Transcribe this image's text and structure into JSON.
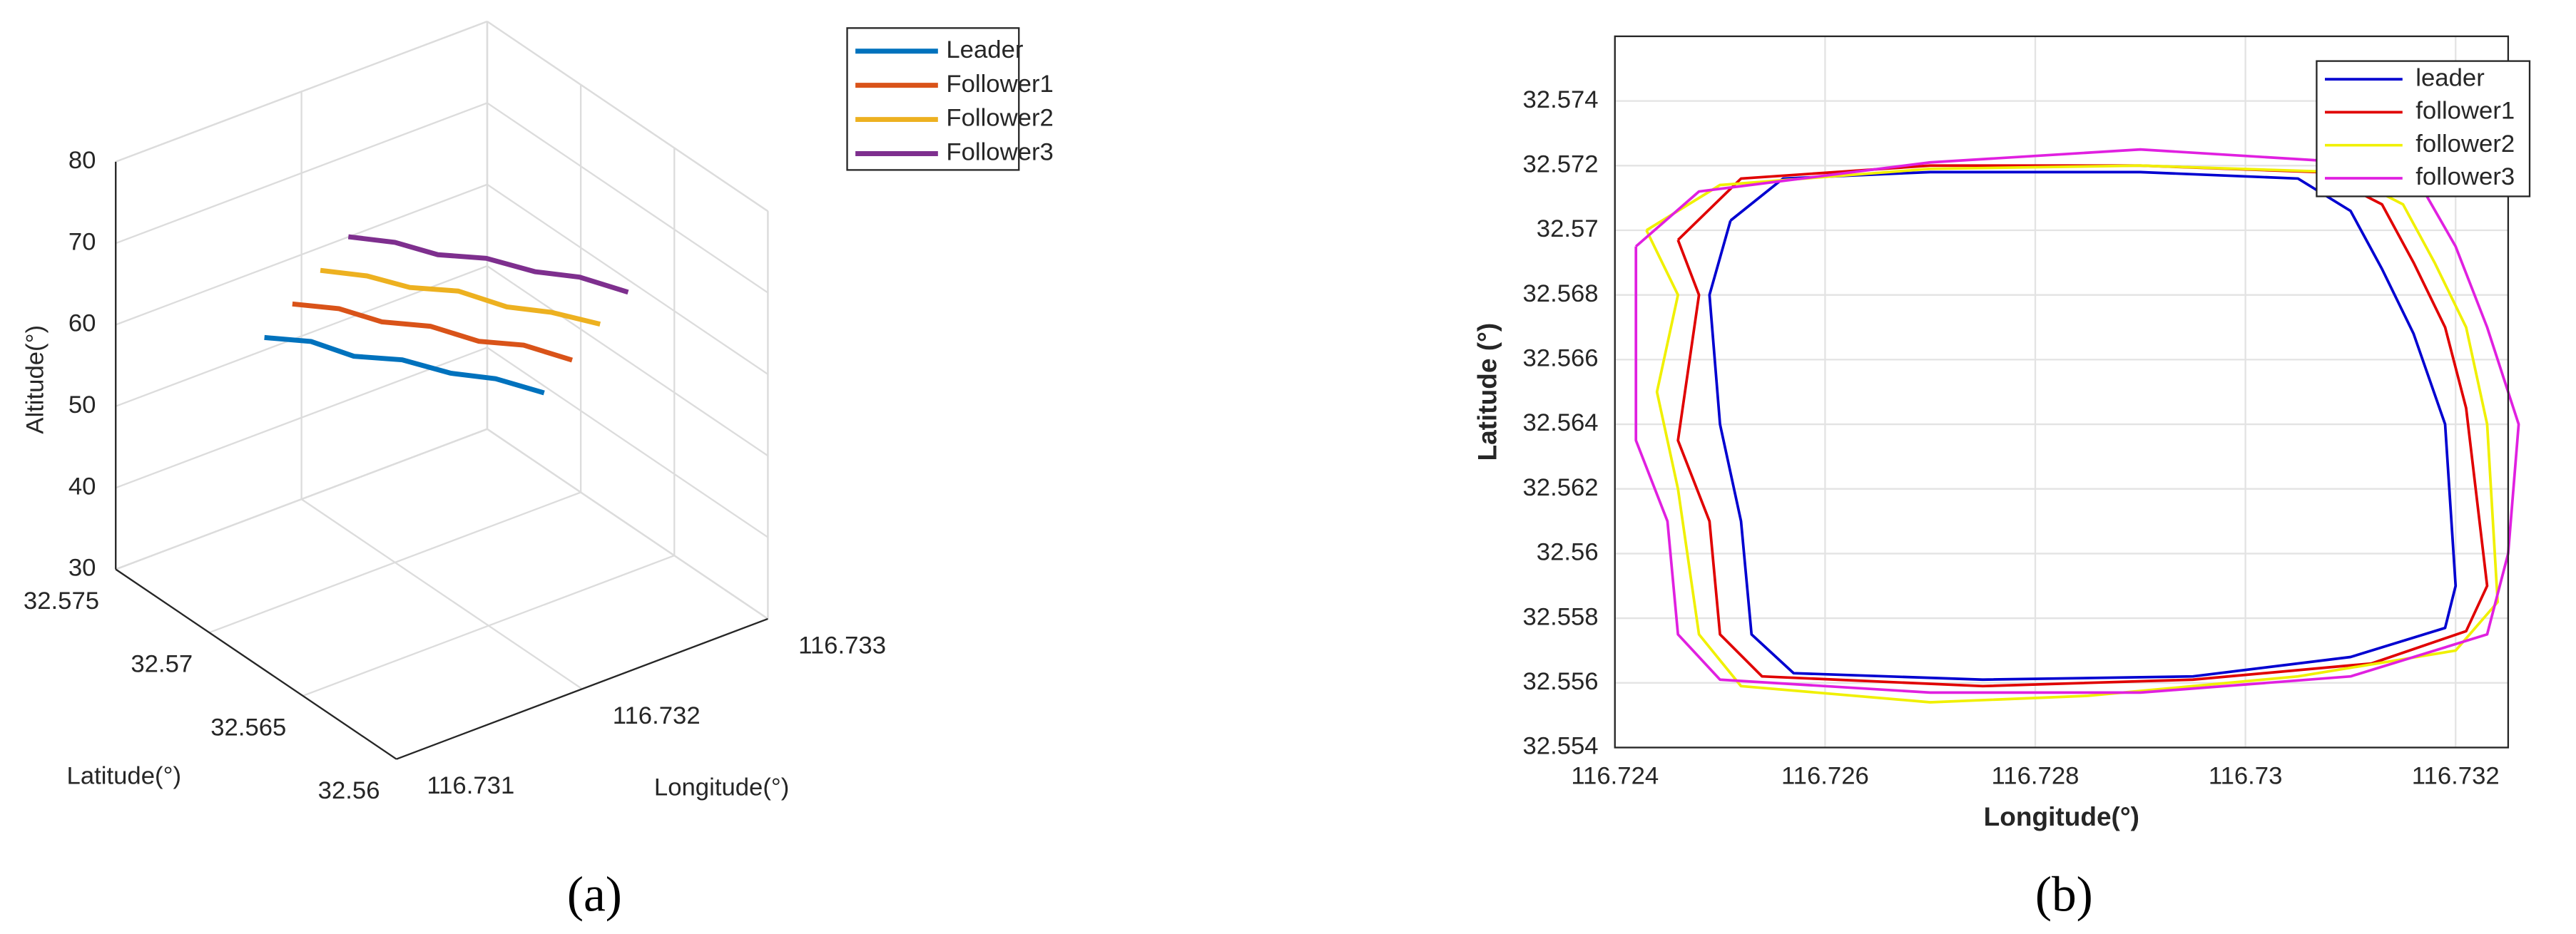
{
  "chart_data": [
    {
      "type": "line3d",
      "panel": "(a)",
      "xlabel": "Longitude(°)",
      "ylabel": "Latitude(°)",
      "zlabel": "Altitude(°)",
      "xlim": [
        116.731,
        116.733
      ],
      "xticks": [
        116.731,
        116.732,
        116.733
      ],
      "ylim": [
        32.56,
        32.575
      ],
      "yticks": [
        32.56,
        32.565,
        32.57,
        32.575
      ],
      "zlim": [
        30,
        80
      ],
      "zticks": [
        30,
        40,
        50,
        60,
        70,
        80
      ],
      "grid": true,
      "legend": "outside-right",
      "series": [
        {
          "name": "Leader",
          "color": "#0072bd",
          "x": [
            116.73174,
            116.73186,
            116.73197,
            116.73209,
            116.73221,
            116.73232,
            116.73244
          ],
          "y": [
            32.5744,
            32.5731,
            32.5719,
            32.5705,
            32.5691,
            32.5678,
            32.5664
          ],
          "z": [
            53,
            53.5,
            52.6,
            53.3,
            52.8,
            53.2,
            52.6
          ]
        },
        {
          "name": "Follower1",
          "color": "#d95319",
          "x": [
            116.7318,
            116.73192,
            116.73203,
            116.73215,
            116.73227,
            116.73238,
            116.7325
          ],
          "y": [
            32.5735,
            32.5722,
            32.571,
            32.5696,
            32.5682,
            32.5669,
            32.5655
          ],
          "z": [
            58,
            58.4,
            57.7,
            58.3,
            57.6,
            58.2,
            57.5
          ]
        },
        {
          "name": "Follower2",
          "color": "#edb120",
          "x": [
            116.73186,
            116.73198,
            116.73209,
            116.73221,
            116.73233,
            116.73244,
            116.73256
          ],
          "y": [
            32.5726,
            32.5713,
            32.5701,
            32.5687,
            32.5673,
            32.566,
            32.5646
          ],
          "z": [
            63,
            63.3,
            62.8,
            63.5,
            62.7,
            63.1,
            62.8
          ]
        },
        {
          "name": "Follower3",
          "color": "#7e2f8e",
          "x": [
            116.73192,
            116.73204,
            116.73215,
            116.73227,
            116.73239,
            116.7325,
            116.73262
          ],
          "y": [
            32.5717,
            32.5704,
            32.5692,
            32.5678,
            32.5664,
            32.5651,
            32.5637
          ],
          "z": [
            68,
            68.3,
            67.7,
            68.4,
            67.9,
            68.3,
            67.6
          ]
        }
      ]
    },
    {
      "type": "line",
      "panel": "(b)",
      "xlabel": "Longitude(°)",
      "ylabel": "Latitude (°)",
      "xlim": [
        116.724,
        116.7325
      ],
      "xticks": [
        116.724,
        116.726,
        116.728,
        116.73,
        116.732
      ],
      "ylim": [
        32.554,
        32.576
      ],
      "yticks": [
        32.554,
        32.556,
        32.558,
        32.56,
        32.562,
        32.564,
        32.566,
        32.568,
        32.57,
        32.572,
        32.574
      ],
      "grid": true,
      "legend": "upper right",
      "series": [
        {
          "name": "leader",
          "color": "#0000d0",
          "x": [
            116.7251,
            116.7256,
            116.727,
            116.729,
            116.7305,
            116.731,
            116.7313,
            116.7316,
            116.7319,
            116.732,
            116.7319,
            116.731,
            116.7295,
            116.7275,
            116.7257,
            116.7253,
            116.7252,
            116.725,
            116.7249,
            116.7251
          ],
          "y": [
            32.5703,
            32.5716,
            32.5718,
            32.5718,
            32.5716,
            32.5706,
            32.5688,
            32.5668,
            32.564,
            32.559,
            32.5577,
            32.5568,
            32.5562,
            32.5561,
            32.5563,
            32.5575,
            32.561,
            32.564,
            32.568,
            32.5703
          ]
        },
        {
          "name": "follower1",
          "color": "#e00000",
          "x": [
            116.7246,
            116.7252,
            116.727,
            116.729,
            116.7307,
            116.7313,
            116.7316,
            116.7319,
            116.7321,
            116.7323,
            116.7321,
            116.7312,
            116.7295,
            116.7275,
            116.7254,
            116.725,
            116.7249,
            116.7246,
            116.7248,
            116.7246
          ],
          "y": [
            32.5697,
            32.5716,
            32.572,
            32.572,
            32.5718,
            32.5708,
            32.569,
            32.567,
            32.5645,
            32.559,
            32.5576,
            32.5566,
            32.5561,
            32.5559,
            32.5562,
            32.5575,
            32.561,
            32.5635,
            32.568,
            32.5697
          ]
        },
        {
          "name": "follower2",
          "color": "#f0f000",
          "x": [
            116.7243,
            116.725,
            116.727,
            116.729,
            116.7309,
            116.7315,
            116.7318,
            116.7321,
            116.7323,
            116.7324,
            116.732,
            116.7305,
            116.7285,
            116.727,
            116.7252,
            116.7248,
            116.7246,
            116.7244,
            116.7246,
            116.7243
          ],
          "y": [
            32.57,
            32.5714,
            32.5719,
            32.572,
            32.5718,
            32.5708,
            32.569,
            32.567,
            32.564,
            32.5585,
            32.557,
            32.5562,
            32.5556,
            32.5554,
            32.5559,
            32.5575,
            32.562,
            32.565,
            32.568,
            32.57
          ]
        },
        {
          "name": "follower3",
          "color": "#e020e0",
          "x": [
            116.7242,
            116.7248,
            116.727,
            116.729,
            116.731,
            116.7317,
            116.732,
            116.7323,
            116.7326,
            116.7325,
            116.7323,
            116.731,
            116.729,
            116.727,
            116.725,
            116.7246,
            116.7245,
            116.7242,
            116.7242,
            116.7242
          ],
          "y": [
            32.5695,
            32.5712,
            32.5721,
            32.5725,
            32.5721,
            32.5712,
            32.5695,
            32.567,
            32.564,
            32.56,
            32.5575,
            32.5562,
            32.5557,
            32.5557,
            32.5561,
            32.5575,
            32.561,
            32.5635,
            32.567,
            32.5695
          ]
        }
      ]
    }
  ]
}
